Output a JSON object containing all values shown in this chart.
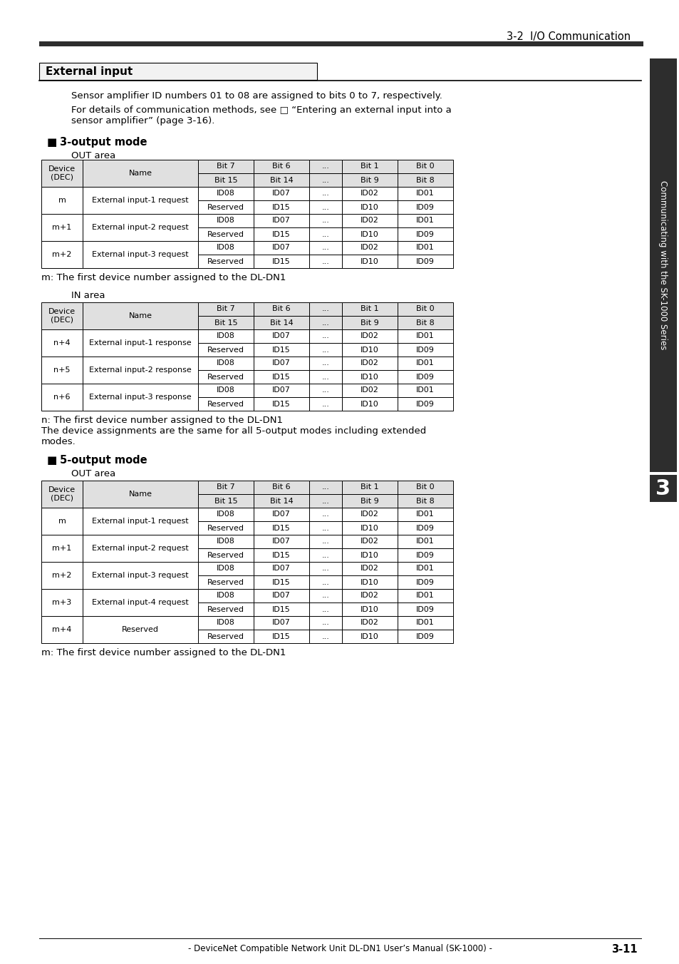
{
  "page_header": "3-2  I/O Communication",
  "section_title": "External input",
  "para1": "Sensor amplifier ID numbers 01 to 08 are assigned to bits 0 to 7, respectively.",
  "para2a": "For details of communication methods, see □ “Entering an external input into a",
  "para2b": "sensor amplifier” (page 3-16).",
  "subsection1": "3-output mode",
  "sub1_area1": "OUT area",
  "sub1_table1_header_row1": [
    "Device\n(DEC)",
    "Name",
    "Bit 7",
    "Bit 6",
    "...",
    "Bit 1",
    "Bit 0"
  ],
  "sub1_table1_header_row2": [
    "",
    "",
    "Bit 15",
    "Bit 14",
    "...",
    "Bit 9",
    "Bit 8"
  ],
  "sub1_table1_rows": [
    [
      "m",
      "External input-1 request",
      "ID08",
      "ID07",
      "...",
      "ID02",
      "ID01"
    ],
    [
      "",
      "",
      "Reserved",
      "ID15",
      "...",
      "ID10",
      "ID09"
    ],
    [
      "m+1",
      "External input-2 request",
      "ID08",
      "ID07",
      "...",
      "ID02",
      "ID01"
    ],
    [
      "",
      "",
      "Reserved",
      "ID15",
      "...",
      "ID10",
      "ID09"
    ],
    [
      "m+2",
      "External input-3 request",
      "ID08",
      "ID07",
      "...",
      "ID02",
      "ID01"
    ],
    [
      "",
      "",
      "Reserved",
      "ID15",
      "...",
      "ID10",
      "ID09"
    ]
  ],
  "sub1_note1": "m: The first device number assigned to the DL-DN1",
  "sub1_area2": "IN area",
  "sub1_table2_header_row1": [
    "Device\n(DEC)",
    "Name",
    "Bit 7",
    "Bit 6",
    "...",
    "Bit 1",
    "Bit 0"
  ],
  "sub1_table2_header_row2": [
    "",
    "",
    "Bit 15",
    "Bit 14",
    "...",
    "Bit 9",
    "Bit 8"
  ],
  "sub1_table2_rows": [
    [
      "n+4",
      "External input-1 response",
      "ID08",
      "ID07",
      "...",
      "ID02",
      "ID01"
    ],
    [
      "",
      "",
      "Reserved",
      "ID15",
      "...",
      "ID10",
      "ID09"
    ],
    [
      "n+5",
      "External input-2 response",
      "ID08",
      "ID07",
      "...",
      "ID02",
      "ID01"
    ],
    [
      "",
      "",
      "Reserved",
      "ID15",
      "...",
      "ID10",
      "ID09"
    ],
    [
      "n+6",
      "External input-3 response",
      "ID08",
      "ID07",
      "...",
      "ID02",
      "ID01"
    ],
    [
      "",
      "",
      "Reserved",
      "ID15",
      "...",
      "ID10",
      "ID09"
    ]
  ],
  "sub1_note2": "n: The first device number assigned to the DL-DN1",
  "sub1_note3a": "The device assignments are the same for all 5-output modes including extended",
  "sub1_note3b": "modes.",
  "subsection2": "5-output mode",
  "sub2_area1": "OUT area",
  "sub2_table1_header_row1": [
    "Device\n(DEC)",
    "Name",
    "Bit 7",
    "Bit 6",
    "...",
    "Bit 1",
    "Bit 0"
  ],
  "sub2_table1_header_row2": [
    "",
    "",
    "Bit 15",
    "Bit 14",
    "...",
    "Bit 9",
    "Bit 8"
  ],
  "sub2_table1_rows": [
    [
      "m",
      "External input-1 request",
      "ID08",
      "ID07",
      "...",
      "ID02",
      "ID01"
    ],
    [
      "",
      "",
      "Reserved",
      "ID15",
      "...",
      "ID10",
      "ID09"
    ],
    [
      "m+1",
      "External input-2 request",
      "ID08",
      "ID07",
      "...",
      "ID02",
      "ID01"
    ],
    [
      "",
      "",
      "Reserved",
      "ID15",
      "...",
      "ID10",
      "ID09"
    ],
    [
      "m+2",
      "External input-3 request",
      "ID08",
      "ID07",
      "...",
      "ID02",
      "ID01"
    ],
    [
      "",
      "",
      "Reserved",
      "ID15",
      "...",
      "ID10",
      "ID09"
    ],
    [
      "m+3",
      "External input-4 request",
      "ID08",
      "ID07",
      "...",
      "ID02",
      "ID01"
    ],
    [
      "",
      "",
      "Reserved",
      "ID15",
      "...",
      "ID10",
      "ID09"
    ],
    [
      "m+4",
      "Reserved",
      "ID08",
      "ID07",
      "...",
      "ID02",
      "ID01"
    ],
    [
      "",
      "",
      "Reserved",
      "ID15",
      "...",
      "ID10",
      "ID09"
    ]
  ],
  "sub2_note1": "m: The first device number assigned to the DL-DN1",
  "footer": "- DeviceNet Compatible Network Unit DL-DN1 User’s Manual (SK-1000) -",
  "page_num": "3-11",
  "sidebar_text": "Communicating with the SK-1000 Series",
  "header_bar_color": "#2d2d2d",
  "sidebar_color": "#2d2d2d",
  "table_header_bg": "#e0e0e0",
  "table_border": "#000000"
}
